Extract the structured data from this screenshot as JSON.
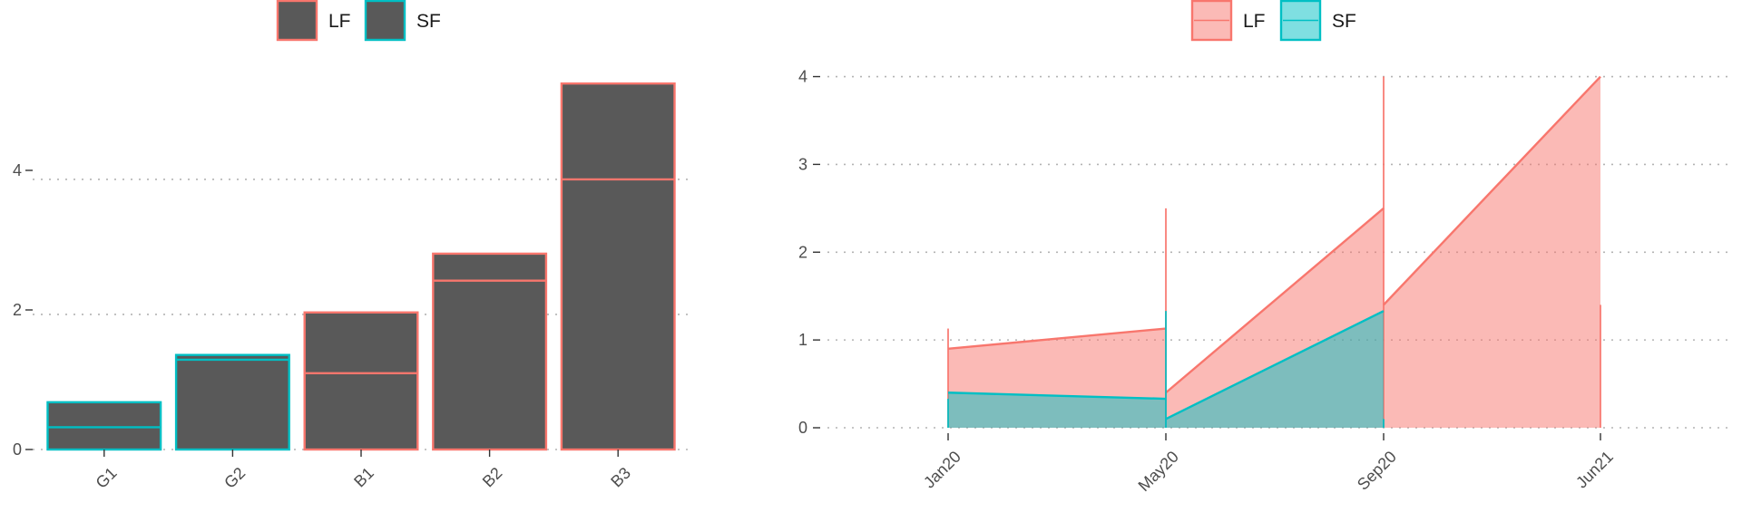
{
  "chart_data": [
    {
      "type": "bar",
      "legend": {
        "placement": "top",
        "entries": [
          {
            "label": "LF",
            "color": "#F8766D"
          },
          {
            "label": "SF",
            "color": "#00BFC4"
          }
        ]
      },
      "bar_fill": "#595959",
      "categories": [
        "G1",
        "G2",
        "B1",
        "B2",
        "B3"
      ],
      "outline_series": [
        "SF",
        "SF",
        "LF",
        "LF",
        "LF"
      ],
      "values": [
        0.7,
        1.4,
        2.03,
        2.9,
        5.42
      ],
      "inner_line_values": [
        0.33,
        1.33,
        1.13,
        2.5,
        4.0
      ],
      "ylim": [
        0,
        5.65
      ],
      "yticks": [
        "0",
        "2",
        "4"
      ],
      "ytick_values": [
        0,
        2,
        4
      ],
      "grid": true
    },
    {
      "type": "area",
      "legend": {
        "placement": "top",
        "entries": [
          {
            "label": "LF",
            "color": "#F8766D",
            "fill": "#F8766D"
          },
          {
            "label": "SF",
            "color": "#00BFC4",
            "fill": "#00BFC4"
          }
        ]
      },
      "x_ticks": [
        "Jan20",
        "May20",
        "Sep20",
        "Jun21"
      ],
      "ylim": [
        0,
        4.15
      ],
      "yticks": [
        "0",
        "1",
        "2",
        "3",
        "4"
      ],
      "ytick_values": [
        0,
        1,
        2,
        3,
        4
      ],
      "grid": true,
      "series": [
        {
          "name": "LF",
          "segments": [
            {
              "x": [
                "Jan20",
                "May20"
              ],
              "y": [
                0.9,
                1.13
              ]
            },
            {
              "x": [
                "May20",
                "Sep20"
              ],
              "y": [
                0.4,
                2.5
              ]
            },
            {
              "x": [
                "Sep20",
                "Jun21"
              ],
              "y": [
                1.4,
                4.0
              ]
            }
          ],
          "spikes": [
            {
              "x": "Jan20",
              "y": 1.13
            },
            {
              "x": "May20",
              "y": 2.5
            },
            {
              "x": "Sep20",
              "y": 4.0
            },
            {
              "x": "Jun21",
              "y": 1.4
            }
          ]
        },
        {
          "name": "SF",
          "segments": [
            {
              "x": [
                "Jan20",
                "May20"
              ],
              "y": [
                0.4,
                0.33
              ]
            },
            {
              "x": [
                "May20",
                "Sep20"
              ],
              "y": [
                0.1,
                1.33
              ]
            }
          ],
          "spikes": [
            {
              "x": "Jan20",
              "y": 0.33
            },
            {
              "x": "May20",
              "y": 1.33
            },
            {
              "x": "Sep20",
              "y": 0.1
            }
          ]
        }
      ]
    }
  ]
}
